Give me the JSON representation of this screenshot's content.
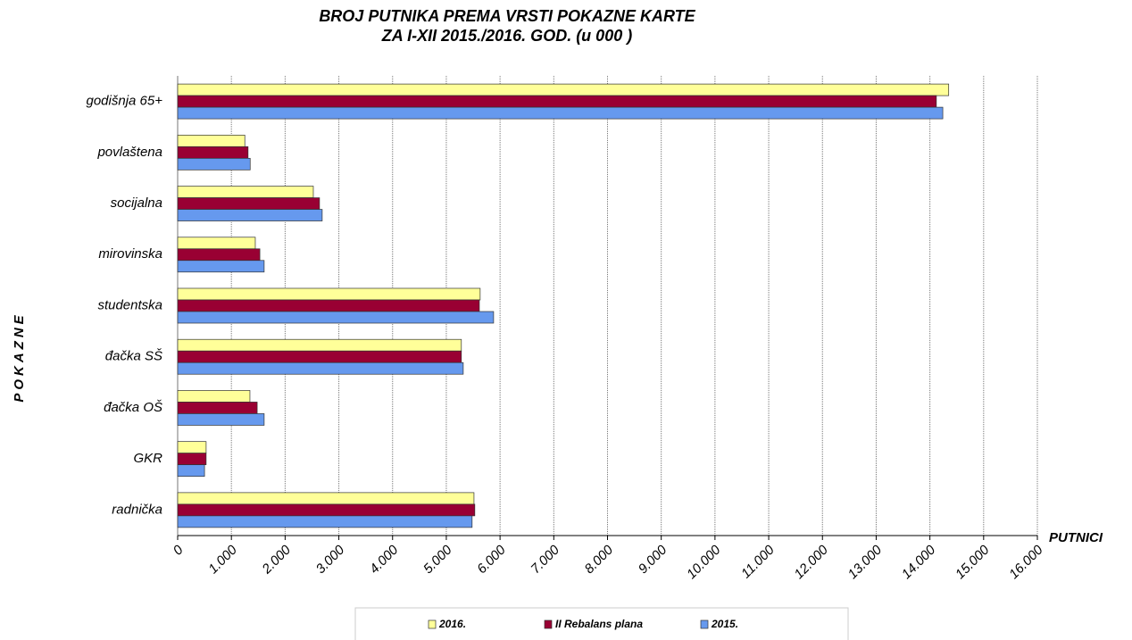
{
  "chart_data": {
    "type": "hbar",
    "title": "BROJ PUTNIKA PREMA VRSTI POKAZNE KARTE",
    "subtitle": "ZA  I-XII 2015./2016. GOD. (u 000 )",
    "x_label": "PUTNICI",
    "y_label": "POKAZNE",
    "categories": [
      "godišnja 65+",
      "povlaštena",
      "socijalna",
      "mirovinska",
      "studentska",
      "đačka SŠ",
      "đačka OŠ",
      "GKR",
      "radnička"
    ],
    "series": [
      {
        "name": "2016.",
        "color": "#ffff99",
        "values": [
          14350,
          1250,
          2525,
          1445,
          5630,
          5280,
          1345,
          530,
          5515
        ]
      },
      {
        "name": "II Rebalans plana",
        "color": "#990033",
        "values": [
          14120,
          1310,
          2640,
          1530,
          5615,
          5280,
          1480,
          530,
          5530
        ]
      },
      {
        "name": "2015.",
        "color": "#6699ee",
        "values": [
          14240,
          1350,
          2690,
          1610,
          5880,
          5315,
          1610,
          500,
          5480
        ]
      }
    ],
    "xlim": [
      0,
      16000
    ],
    "xticks": [
      0,
      {
        "value": 1000,
        "label": "1.000"
      },
      {
        "value": 2000,
        "label": "2.000"
      },
      {
        "value": 3000,
        "label": "3.000"
      },
      {
        "value": 4000,
        "label": "4.000"
      },
      {
        "value": 5000,
        "label": "5.000"
      },
      {
        "value": 6000,
        "label": "6.000"
      },
      {
        "value": 7000,
        "label": "7.000"
      },
      {
        "value": 8000,
        "label": "8.000"
      },
      {
        "value": 9000,
        "label": "9.000"
      },
      {
        "value": 10000,
        "label": "10.000"
      },
      {
        "value": 11000,
        "label": "11.000"
      },
      {
        "value": 12000,
        "label": "12.000"
      },
      {
        "value": 13000,
        "label": "13.000"
      },
      {
        "value": 14000,
        "label": "14.000"
      },
      {
        "value": 15000,
        "label": "15.000"
      },
      {
        "value": 16000,
        "label": "16.000"
      }
    ],
    "grid": true,
    "legend": "bottom"
  }
}
